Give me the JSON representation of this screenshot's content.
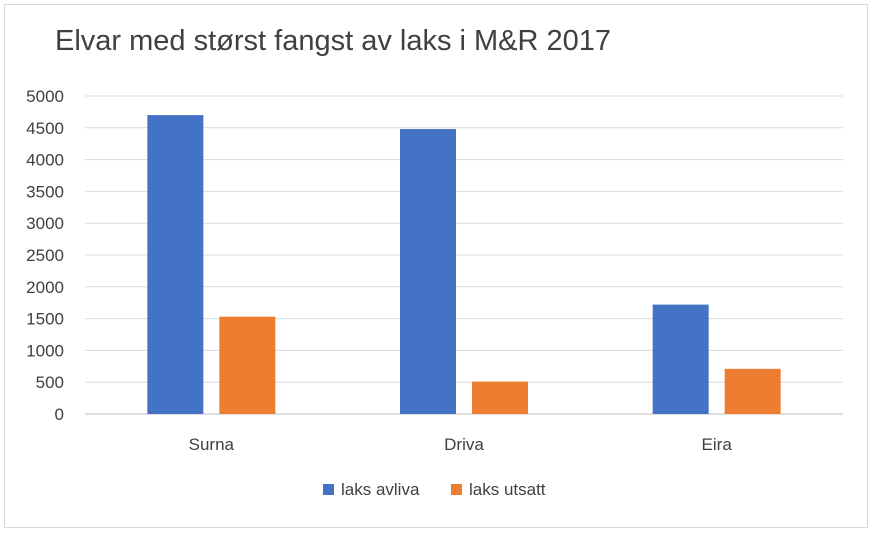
{
  "chart_data": {
    "type": "bar",
    "title": "Elvar med størst fangst av laks i M&R 2017",
    "categories": [
      "Surna",
      "Driva",
      "Eira"
    ],
    "series": [
      {
        "name": "laks avliva",
        "values": [
          4700,
          4480,
          1720
        ],
        "color": "#4472C4"
      },
      {
        "name": "laks utsatt",
        "values": [
          1530,
          510,
          710
        ],
        "color": "#ED7D31"
      }
    ],
    "yticks": [
      "0",
      "500",
      "1000",
      "1500",
      "2000",
      "2500",
      "3000",
      "3500",
      "4000",
      "4500",
      "5000"
    ],
    "ylim": [
      0,
      5000
    ],
    "grid": true,
    "legend": "bottom"
  }
}
